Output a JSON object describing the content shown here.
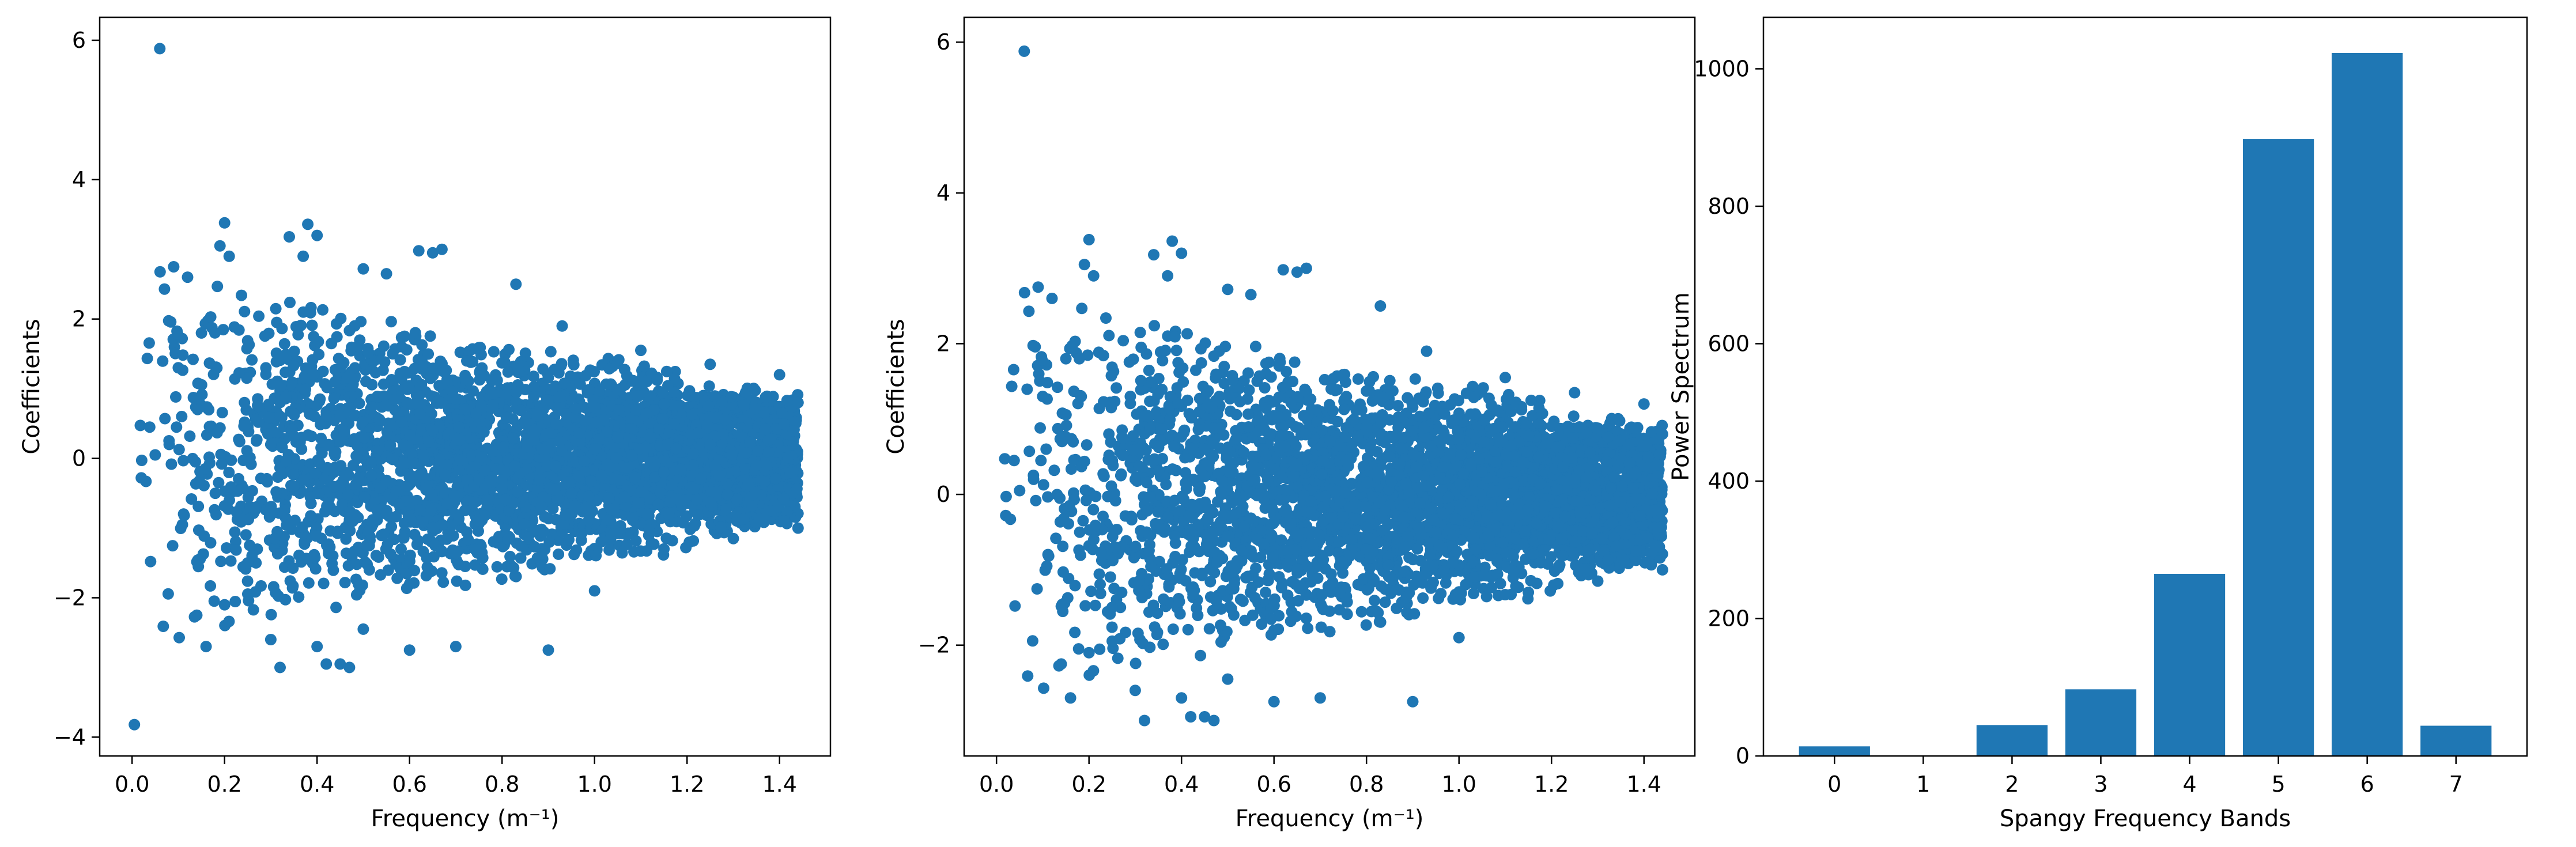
{
  "colors": {
    "series": "#1f77b4",
    "axis": "#000000",
    "background": "#ffffff"
  },
  "chart_data": [
    {
      "type": "scatter",
      "title": "",
      "xlabel": "Frequency (m⁻¹)",
      "ylabel": "Coefficients",
      "xlim": [
        -0.07,
        1.51
      ],
      "ylim": [
        -4.27,
        6.33
      ],
      "xticks": [
        0.0,
        0.2,
        0.4,
        0.6,
        0.8,
        1.0,
        1.2,
        1.4
      ],
      "xtick_labels": [
        "0.0",
        "0.2",
        "0.4",
        "0.6",
        "0.8",
        "1.0",
        "1.2",
        "1.4"
      ],
      "yticks": [
        -4,
        -2,
        0,
        2,
        4,
        6
      ],
      "ytick_labels": [
        "−4",
        "−2",
        "0",
        "2",
        "4",
        "6"
      ],
      "grid": false,
      "points_approx_count": 4000,
      "points": [
        [
          0.06,
          5.88
        ],
        [
          0.005,
          -3.82
        ],
        [
          0.02,
          -0.28
        ],
        [
          0.03,
          -0.33
        ],
        [
          0.04,
          -1.48
        ],
        [
          0.05,
          0.05
        ],
        [
          0.07,
          2.43
        ],
        [
          0.09,
          2.75
        ],
        [
          0.1,
          1.3
        ],
        [
          0.12,
          2.6
        ],
        [
          0.15,
          1.8
        ],
        [
          0.17,
          2.03
        ],
        [
          0.19,
          3.05
        ],
        [
          0.2,
          3.38
        ],
        [
          0.21,
          2.9
        ],
        [
          0.14,
          -2.25
        ],
        [
          0.16,
          -2.7
        ],
        [
          0.2,
          -2.1
        ],
        [
          0.25,
          -1.5
        ],
        [
          0.3,
          -2.6
        ],
        [
          0.32,
          -3.0
        ],
        [
          0.34,
          3.18
        ],
        [
          0.37,
          2.9
        ],
        [
          0.38,
          3.36
        ],
        [
          0.4,
          3.2
        ],
        [
          0.4,
          -2.7
        ],
        [
          0.42,
          -2.95
        ],
        [
          0.45,
          -2.95
        ],
        [
          0.47,
          -3.0
        ],
        [
          0.5,
          -2.45
        ],
        [
          0.5,
          2.72
        ],
        [
          0.55,
          2.65
        ],
        [
          0.6,
          -2.75
        ],
        [
          0.62,
          2.98
        ],
        [
          0.65,
          2.95
        ],
        [
          0.67,
          3.0
        ],
        [
          0.7,
          -2.7
        ],
        [
          0.83,
          2.5
        ],
        [
          0.9,
          -2.75
        ],
        [
          0.93,
          1.9
        ],
        [
          1.0,
          -1.9
        ],
        [
          1.1,
          1.55
        ],
        [
          1.15,
          -1.3
        ],
        [
          1.25,
          1.35
        ],
        [
          1.3,
          -1.15
        ],
        [
          1.4,
          1.2
        ],
        [
          1.44,
          -1.0
        ],
        [
          1.44,
          0.8
        ],
        [
          0.3,
          0.2
        ],
        [
          0.35,
          -0.4
        ],
        [
          0.45,
          0.6
        ],
        [
          0.55,
          -0.8
        ],
        [
          0.65,
          0.4
        ],
        [
          0.75,
          -0.3
        ],
        [
          0.85,
          0.5
        ],
        [
          0.95,
          -0.5
        ],
        [
          1.05,
          0.3
        ],
        [
          1.15,
          -0.2
        ],
        [
          1.25,
          0.2
        ],
        [
          1.35,
          -0.1
        ]
      ]
    },
    {
      "type": "scatter",
      "title": "",
      "xlabel": "Frequency (m⁻¹)",
      "ylabel": "Coefficients",
      "xlim": [
        -0.07,
        1.51
      ],
      "ylim": [
        -3.47,
        6.33
      ],
      "xticks": [
        0.0,
        0.2,
        0.4,
        0.6,
        0.8,
        1.0,
        1.2,
        1.4
      ],
      "xtick_labels": [
        "0.0",
        "0.2",
        "0.4",
        "0.6",
        "0.8",
        "1.0",
        "1.2",
        "1.4"
      ],
      "yticks": [
        -2,
        0,
        2,
        4,
        6
      ],
      "ytick_labels": [
        "−2",
        "0",
        "2",
        "4",
        "6"
      ],
      "grid": false,
      "points_approx_count": 4000,
      "points": [
        [
          0.06,
          5.88
        ],
        [
          0.02,
          -0.28
        ],
        [
          0.03,
          -0.33
        ],
        [
          0.04,
          -1.48
        ],
        [
          0.05,
          0.05
        ],
        [
          0.07,
          2.43
        ],
        [
          0.09,
          2.75
        ],
        [
          0.1,
          1.3
        ],
        [
          0.12,
          2.6
        ],
        [
          0.15,
          1.8
        ],
        [
          0.17,
          2.03
        ],
        [
          0.19,
          3.05
        ],
        [
          0.2,
          3.38
        ],
        [
          0.21,
          2.9
        ],
        [
          0.14,
          -2.25
        ],
        [
          0.16,
          -2.7
        ],
        [
          0.2,
          -2.1
        ],
        [
          0.25,
          -1.5
        ],
        [
          0.3,
          -2.6
        ],
        [
          0.32,
          -3.0
        ],
        [
          0.34,
          3.18
        ],
        [
          0.37,
          2.9
        ],
        [
          0.38,
          3.36
        ],
        [
          0.4,
          3.2
        ],
        [
          0.4,
          -2.7
        ],
        [
          0.42,
          -2.95
        ],
        [
          0.45,
          -2.95
        ],
        [
          0.47,
          -3.0
        ],
        [
          0.5,
          -2.45
        ],
        [
          0.5,
          2.72
        ],
        [
          0.55,
          2.65
        ],
        [
          0.6,
          -2.75
        ],
        [
          0.62,
          2.98
        ],
        [
          0.65,
          2.95
        ],
        [
          0.67,
          3.0
        ],
        [
          0.7,
          -2.7
        ],
        [
          0.83,
          2.5
        ],
        [
          0.9,
          -2.75
        ],
        [
          0.93,
          1.9
        ],
        [
          1.0,
          -1.9
        ],
        [
          1.1,
          1.55
        ],
        [
          1.15,
          -1.3
        ],
        [
          1.25,
          1.35
        ],
        [
          1.3,
          -1.15
        ],
        [
          1.4,
          1.2
        ],
        [
          1.44,
          -1.0
        ],
        [
          1.44,
          0.8
        ],
        [
          0.3,
          0.2
        ],
        [
          0.35,
          -0.4
        ],
        [
          0.45,
          0.6
        ],
        [
          0.55,
          -0.8
        ],
        [
          0.65,
          0.4
        ],
        [
          0.75,
          -0.3
        ],
        [
          0.85,
          0.5
        ],
        [
          0.95,
          -0.5
        ],
        [
          1.05,
          0.3
        ],
        [
          1.15,
          -0.2
        ],
        [
          1.25,
          0.2
        ],
        [
          1.35,
          -0.1
        ]
      ]
    },
    {
      "type": "bar",
      "title": "",
      "xlabel": "Spangy Frequency Bands",
      "ylabel": "Power Spectrum",
      "categories": [
        "0",
        "1",
        "2",
        "3",
        "4",
        "5",
        "6",
        "7"
      ],
      "values": [
        14,
        0,
        45,
        97,
        265,
        898,
        1023,
        44
      ],
      "xlim": [
        -0.8,
        7.8
      ],
      "ylim": [
        0,
        1075
      ],
      "yticks": [
        0,
        200,
        400,
        600,
        800,
        1000
      ],
      "ytick_labels": [
        "0",
        "200",
        "400",
        "600",
        "800",
        "1000"
      ],
      "grid": false
    }
  ]
}
